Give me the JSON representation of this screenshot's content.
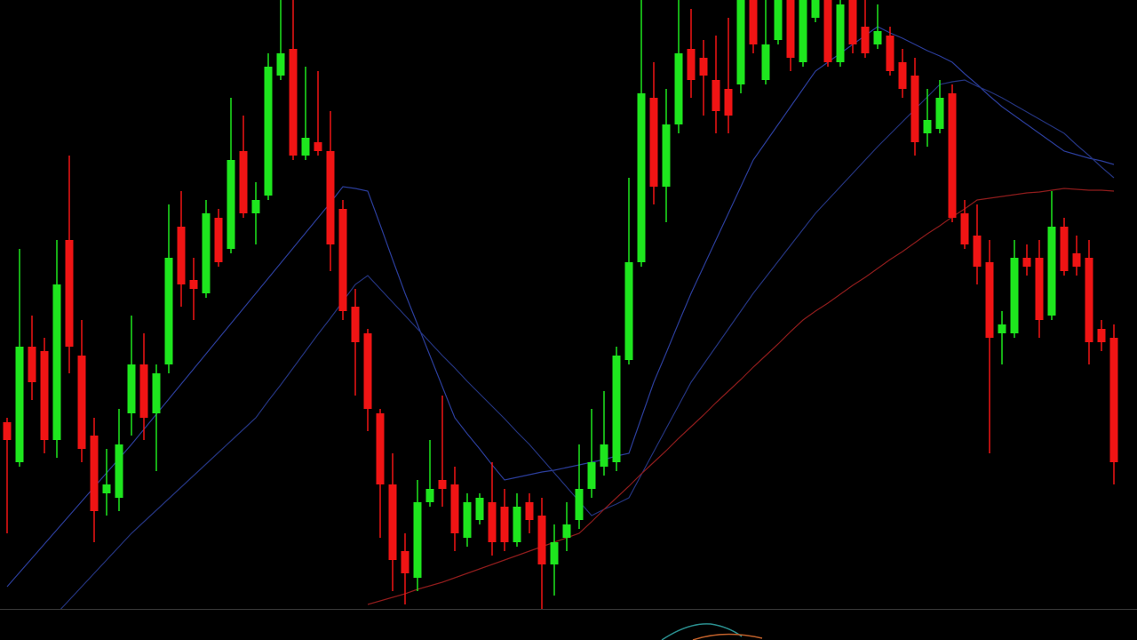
{
  "chart_data": {
    "type": "candlestick",
    "ylim": [
      0,
      720
    ],
    "up_color": "#1ee61e",
    "down_color": "#f01414",
    "open": [
      245,
      200,
      330,
      325,
      225,
      450,
      320,
      230,
      165,
      160,
      255,
      310,
      255,
      310,
      465,
      405,
      390,
      475,
      440,
      550,
      480,
      500,
      635,
      665,
      545,
      560,
      550,
      485,
      375,
      345,
      255,
      175,
      100,
      70,
      155,
      180,
      175,
      115,
      135,
      155,
      150,
      110,
      155,
      140,
      85,
      115,
      135,
      170,
      195,
      200,
      315,
      425,
      610,
      510,
      580,
      665,
      655,
      630,
      620,
      625,
      720,
      630,
      675,
      720,
      650,
      700,
      720,
      650,
      720,
      690,
      670,
      680,
      650,
      635,
      570,
      575,
      615,
      480,
      455,
      425,
      345,
      345,
      430,
      430,
      365,
      465,
      435,
      430,
      350,
      340
    ],
    "high": [
      250,
      440,
      365,
      340,
      450,
      545,
      360,
      250,
      215,
      260,
      365,
      345,
      310,
      490,
      505,
      430,
      495,
      485,
      610,
      590,
      515,
      660,
      720,
      720,
      645,
      640,
      595,
      495,
      395,
      350,
      260,
      210,
      120,
      180,
      225,
      275,
      195,
      165,
      165,
      200,
      170,
      165,
      165,
      160,
      130,
      155,
      220,
      260,
      280,
      330,
      520,
      720,
      650,
      620,
      720,
      710,
      675,
      680,
      700,
      720,
      720,
      720,
      720,
      720,
      720,
      720,
      720,
      720,
      720,
      720,
      715,
      690,
      665,
      655,
      620,
      630,
      625,
      495,
      490,
      450,
      370,
      450,
      445,
      450,
      505,
      475,
      455,
      450,
      360,
      355
    ],
    "low": [
      120,
      195,
      270,
      210,
      205,
      300,
      200,
      110,
      140,
      145,
      230,
      225,
      190,
      300,
      375,
      360,
      385,
      420,
      435,
      475,
      445,
      495,
      630,
      540,
      540,
      545,
      415,
      360,
      275,
      235,
      115,
      55,
      40,
      55,
      150,
      150,
      100,
      105,
      130,
      95,
      100,
      105,
      120,
      35,
      50,
      100,
      125,
      160,
      185,
      190,
      310,
      420,
      490,
      470,
      570,
      610,
      590,
      570,
      570,
      615,
      660,
      625,
      670,
      640,
      645,
      695,
      645,
      645,
      660,
      655,
      665,
      635,
      610,
      545,
      555,
      570,
      470,
      440,
      400,
      210,
      310,
      340,
      410,
      340,
      360,
      410,
      410,
      310,
      325,
      175
    ],
    "close": [
      225,
      330,
      290,
      225,
      400,
      330,
      215,
      145,
      175,
      220,
      310,
      250,
      300,
      430,
      400,
      395,
      480,
      425,
      540,
      480,
      495,
      645,
      660,
      545,
      565,
      550,
      445,
      370,
      335,
      260,
      175,
      90,
      75,
      155,
      170,
      170,
      120,
      155,
      160,
      110,
      110,
      150,
      135,
      85,
      110,
      130,
      170,
      200,
      220,
      320,
      425,
      615,
      510,
      580,
      660,
      630,
      635,
      595,
      590,
      720,
      670,
      670,
      720,
      655,
      720,
      720,
      650,
      715,
      670,
      660,
      685,
      640,
      620,
      560,
      585,
      610,
      475,
      445,
      420,
      340,
      355,
      430,
      420,
      360,
      465,
      415,
      420,
      335,
      335,
      200
    ],
    "overlays": [
      {
        "color": "#2b3d9a",
        "values": [
          60,
          76,
          92,
          108,
          124,
          140,
          156,
          172,
          188,
          204,
          220,
          237,
          254,
          271,
          288,
          305,
          322,
          339,
          356,
          373,
          390,
          407,
          424,
          441,
          458,
          475,
          492,
          510,
          508,
          505,
          467,
          428,
          390,
          355,
          320,
          285,
          250,
          232,
          215,
          197,
          180,
          183,
          186,
          189,
          191,
          194,
          197,
          200,
          203,
          207,
          210,
          250,
          290,
          323,
          357,
          390,
          420,
          450,
          480,
          510,
          540,
          560,
          580,
          600,
          620,
          640,
          650,
          660,
          670,
          680,
          690,
          683,
          677,
          670,
          663,
          657,
          650,
          637,
          625,
          612,
          600,
          590,
          580,
          570,
          560,
          550,
          546,
          542,
          539,
          535
        ]
      },
      {
        "color": "#24347f",
        "values": [
          null,
          null,
          0,
          15,
          30,
          45,
          60,
          75,
          90,
          105,
          120,
          133,
          146,
          159,
          172,
          185,
          198,
          211,
          224,
          237,
          250,
          269,
          287,
          306,
          325,
          344,
          362,
          381,
          400,
          410,
          395,
          380,
          365,
          350,
          335,
          320,
          306,
          291,
          277,
          263,
          249,
          234,
          220,
          204,
          188,
          172,
          156,
          140,
          147,
          153,
          160,
          186,
          212,
          238,
          264,
          290,
          310,
          330,
          350,
          370,
          390,
          408,
          426,
          444,
          462,
          480,
          495,
          510,
          525,
          540,
          555,
          569,
          583,
          597,
          611,
          625,
          628,
          630,
          623,
          617,
          610,
          602,
          594,
          586,
          578,
          570,
          557,
          545,
          532,
          520
        ]
      },
      {
        "color": "#8e1c1c",
        "values": [
          null,
          null,
          null,
          null,
          null,
          null,
          null,
          null,
          null,
          null,
          null,
          null,
          null,
          null,
          null,
          null,
          null,
          null,
          null,
          null,
          null,
          null,
          null,
          null,
          null,
          null,
          null,
          null,
          null,
          40,
          44,
          48,
          52,
          57,
          61,
          65,
          70,
          75,
          80,
          85,
          90,
          95,
          100,
          105,
          110,
          115,
          120,
          133,
          147,
          160,
          173,
          187,
          200,
          213,
          227,
          240,
          253,
          267,
          280,
          293,
          307,
          320,
          333,
          347,
          360,
          370,
          379,
          389,
          399,
          408,
          418,
          428,
          437,
          447,
          457,
          466,
          476,
          485,
          495,
          497,
          499,
          501,
          503,
          504,
          506,
          508,
          507,
          506,
          506,
          505
        ]
      }
    ]
  }
}
